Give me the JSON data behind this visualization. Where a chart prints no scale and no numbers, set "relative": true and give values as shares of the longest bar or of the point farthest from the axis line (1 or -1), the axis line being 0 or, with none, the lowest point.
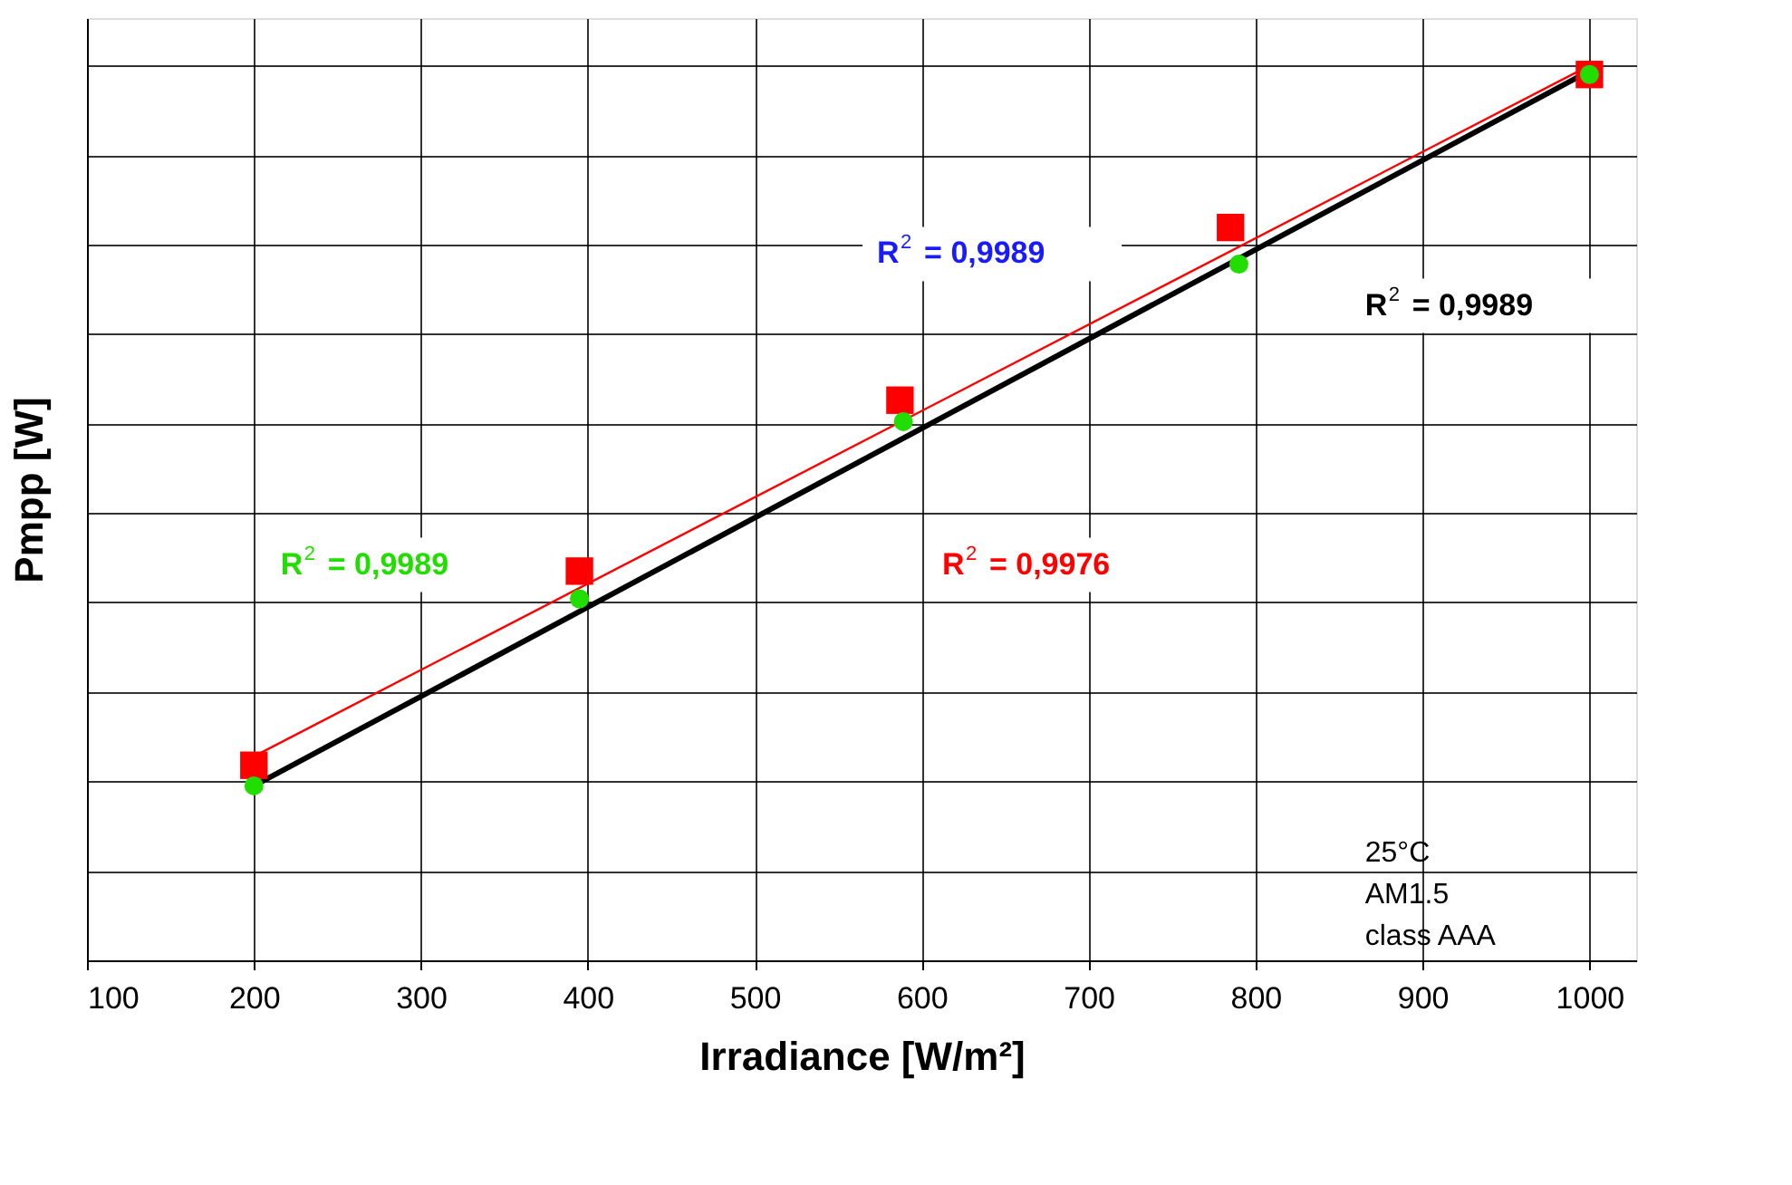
{
  "chart_data": {
    "type": "scatter",
    "xlabel": "Irradiance [W/m²]",
    "ylabel": "Pmpp [W]",
    "relative": true,
    "xlim": [
      100,
      1028
    ],
    "xticks": [
      100,
      200,
      300,
      400,
      500,
      600,
      700,
      800,
      900,
      1000
    ],
    "grid": true,
    "legend": false,
    "series": [
      {
        "type": "line",
        "color": "#000000",
        "marker": "none",
        "x": [
          200,
          1000
        ],
        "values": [
          0.195,
          0.994
        ]
      },
      {
        "type": "line",
        "color": "#ff0000",
        "marker": "none",
        "x": [
          200,
          1000
        ],
        "values": [
          0.228,
          1.0
        ]
      },
      {
        "color": "#ff0000",
        "marker": "square",
        "x": [
          200,
          395,
          587,
          785,
          1000
        ],
        "values": [
          0.218,
          0.435,
          0.626,
          0.819,
          0.99
        ]
      },
      {
        "color": "#22dd00",
        "marker": "circle",
        "x": [
          200,
          395,
          589,
          790,
          1000
        ],
        "values": [
          0.195,
          0.404,
          0.602,
          0.778,
          0.99
        ]
      }
    ],
    "annotations": [
      "R$^{2}$ = 0,9989",
      "R$^{2}$ = 0,9989",
      "R$^{2}$ = 0,9976",
      "R$^{2}$ = 0,9989",
      "25°C\nAM1.5\nclass AAA"
    ]
  }
}
